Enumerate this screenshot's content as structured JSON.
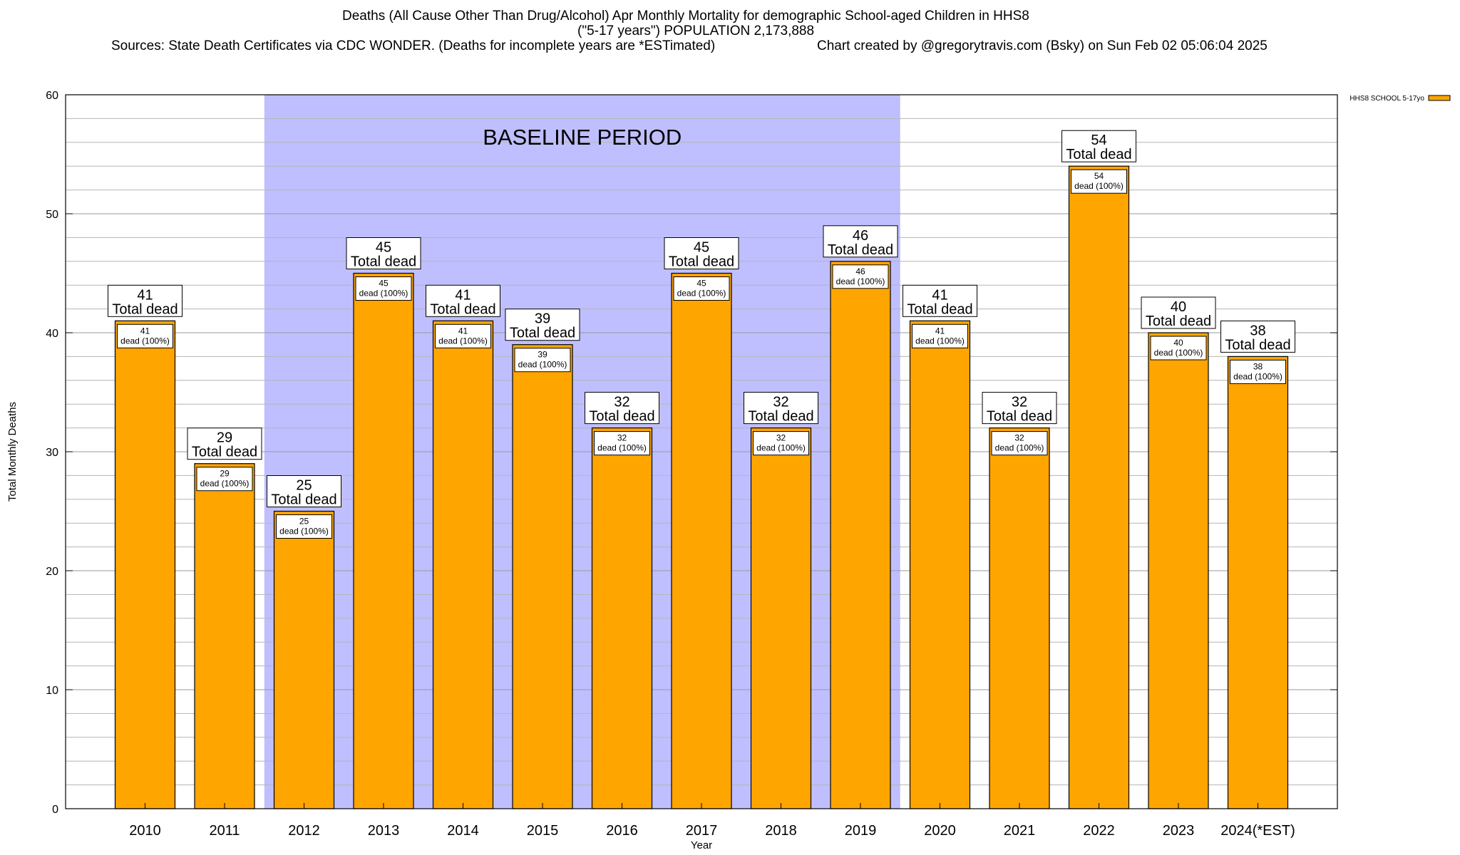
{
  "chart_data": {
    "type": "bar",
    "title_line1": "Deaths (All Cause Other Than Drug/Alcohol) Apr Monthly Mortality for demographic School-aged Children in HHS8",
    "title_line2": "(\"5-17 years\") POPULATION 2,173,888",
    "sources": "Sources: State Death Certificates via CDC WONDER. (Deaths for incomplete years are *ESTimated)",
    "credit": "Chart created by @gregorytravis.com (Bsky) on Sun Feb 02 05:06:04 2025",
    "xlabel": "Year",
    "ylabel": "Total Monthly Deaths",
    "ylim": [
      0,
      60
    ],
    "yticks": [
      0,
      10,
      20,
      30,
      40,
      50,
      60
    ],
    "minor_step": 2,
    "categories": [
      "2010",
      "2011",
      "2012",
      "2013",
      "2014",
      "2015",
      "2016",
      "2017",
      "2018",
      "2019",
      "2020",
      "2021",
      "2022",
      "2023",
      "2024(*EST)"
    ],
    "series": [
      {
        "name": "HHS8 SCHOOL 5-17yo",
        "color": "#FFA500",
        "values": [
          41,
          29,
          25,
          45,
          41,
          39,
          32,
          45,
          32,
          46,
          41,
          32,
          54,
          40,
          38
        ]
      }
    ],
    "top_label_suffix": "Total dead",
    "inner_label_suffix": "dead (100%)",
    "baseline": {
      "label": "BASELINE PERIOD",
      "from": "2012",
      "to": "2019",
      "color": "#BFBFFF"
    },
    "legend": {
      "position": "top-right",
      "label": "HHS8 SCHOOL 5-17yo"
    }
  }
}
